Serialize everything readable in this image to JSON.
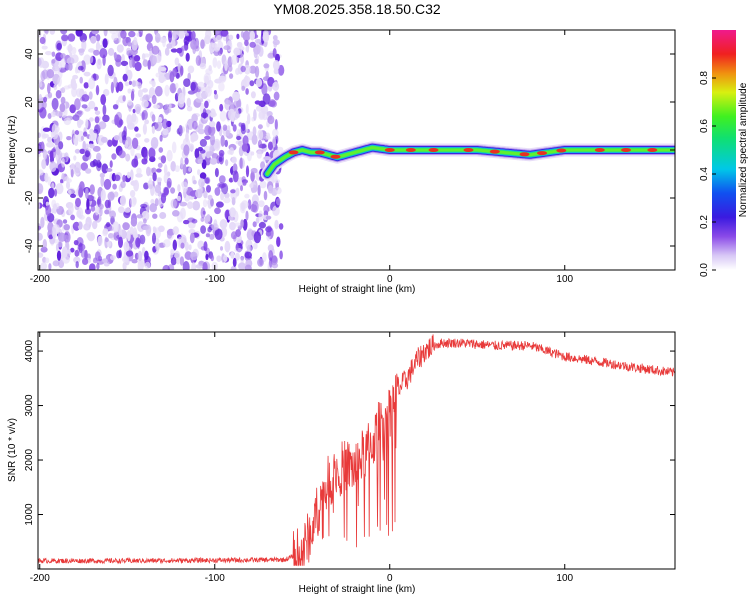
{
  "title": "YM08.2025.358.18.50.C32",
  "chart_data": [
    {
      "type": "heatmap",
      "name": "spectrogram",
      "xlabel": "Height of straight line (km)",
      "ylabel": "Frequency (Hz)",
      "xlim": [
        -201,
        163
      ],
      "ylim": [
        -50,
        50
      ],
      "xticks": [
        -200,
        -100,
        0,
        100
      ],
      "yticks": [
        -40,
        -20,
        0,
        20,
        40
      ],
      "noise_region_x": [
        -201,
        -62
      ],
      "ridge": {
        "x": [
          -70,
          -66,
          -60,
          -55,
          -50,
          -45,
          -40,
          -35,
          -30,
          -25,
          -20,
          -15,
          -10,
          0,
          20,
          50,
          80,
          90,
          100,
          130,
          163
        ],
        "freq": [
          -10,
          -6,
          -3,
          -1,
          0,
          -1,
          -1,
          -2,
          -3,
          -2,
          -1,
          0,
          1,
          0,
          0,
          0,
          -2,
          -1,
          0,
          0,
          0
        ]
      },
      "colorbar": {
        "label": "Normalized spectral amplitude",
        "range": [
          0,
          1
        ],
        "ticks": [
          "0.0",
          "0.2",
          "0.4",
          "0.6",
          "0.8"
        ]
      }
    },
    {
      "type": "line",
      "name": "snr",
      "xlabel": "Height of straight line (km)",
      "ylabel": "SNR (10 * v/v)",
      "xlim": [
        -201,
        163
      ],
      "ylim": [
        0,
        4350
      ],
      "xticks": [
        -200,
        -100,
        0,
        100
      ],
      "yticks": [
        1000,
        2000,
        3000,
        4000
      ],
      "series": [
        {
          "name": "SNR",
          "color": "#e83a3a",
          "x": [
            -201,
            -150,
            -100,
            -60,
            -50,
            -45,
            -40,
            -35,
            -30,
            -25,
            -20,
            -15,
            -10,
            -5,
            0,
            5,
            10,
            15,
            20,
            25,
            30,
            40,
            60,
            80,
            100,
            120,
            140,
            163
          ],
          "y": [
            150,
            150,
            160,
            170,
            300,
            700,
            1200,
            1600,
            1800,
            1900,
            1850,
            2100,
            2300,
            2700,
            2900,
            3300,
            3500,
            3800,
            4000,
            4100,
            4150,
            4150,
            4100,
            4100,
            3900,
            3800,
            3700,
            3600
          ]
        }
      ]
    }
  ]
}
